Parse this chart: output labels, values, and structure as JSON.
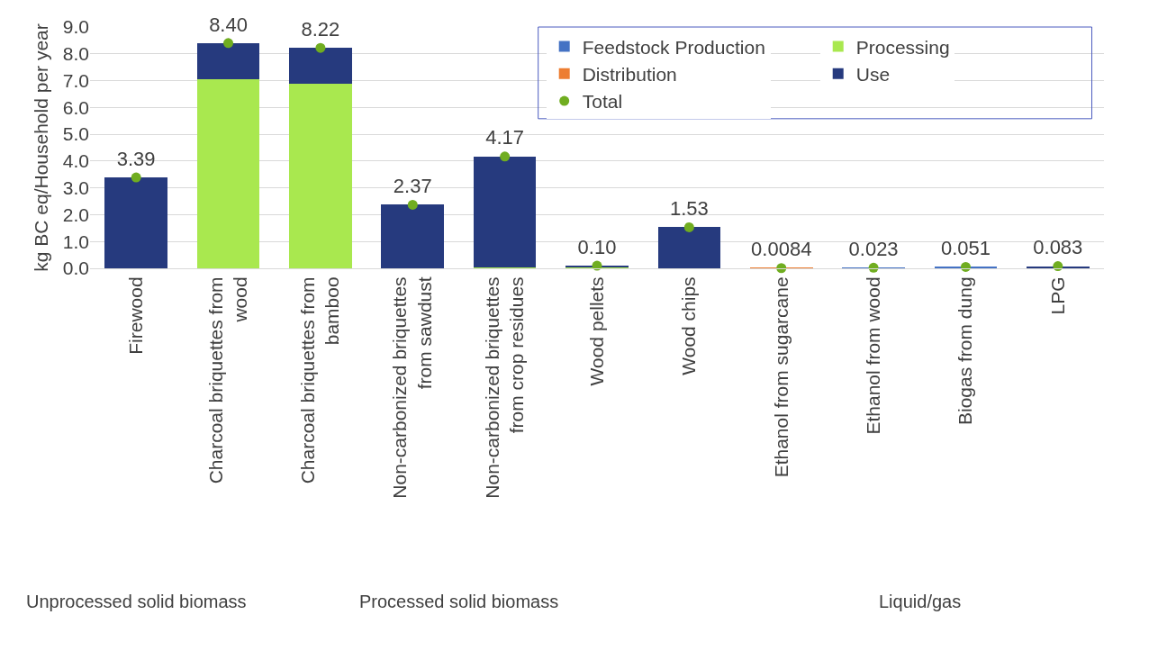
{
  "chart_data": {
    "type": "bar",
    "stacked": true,
    "ylabel": "kg BC eq/Household per year",
    "categories": [
      "Firewood",
      "Charcoal briquettes from wood",
      "Charcoal briquettes from bamboo",
      "Non-carbonized briquettes from sawdust",
      "Non-carbonized briquettes from crop residues",
      "Wood pellets",
      "Wood chips",
      "Ethanol from sugarcane",
      "Ethanol from wood",
      "Biogas from dung",
      "LPG"
    ],
    "series": [
      {
        "name": "Feedstock Production",
        "color": "#4472c4",
        "values": [
          0,
          0,
          0,
          0,
          0,
          0,
          0,
          0,
          0.02,
          0.05,
          null
        ]
      },
      {
        "name": "Processing",
        "color": "#a9e84f",
        "values": [
          0,
          7.05,
          6.88,
          0,
          0.03,
          0.02,
          0,
          0,
          0,
          0,
          0
        ]
      },
      {
        "name": "Distribution",
        "color": "#ed7d31",
        "values": [
          0,
          0,
          0,
          0,
          0,
          0,
          0,
          0.01,
          0,
          0,
          0.02
        ]
      },
      {
        "name": "Use",
        "color": "#263a7e",
        "values": [
          3.39,
          1.35,
          1.34,
          2.37,
          4.14,
          0.08,
          1.53,
          0,
          0,
          0,
          0.06
        ]
      },
      {
        "name": "Total",
        "type": "scatter",
        "marker": "circle",
        "color": "#70ad20",
        "values": [
          3.39,
          8.4,
          8.22,
          2.37,
          4.17,
          0.1,
          1.53,
          0.0084,
          0.023,
          0.051,
          0.083
        ],
        "value_labels": [
          "3.39",
          "8.40",
          "8.22",
          "2.37",
          "4.17",
          "0.10",
          "1.53",
          "0.0084",
          "0.023",
          "0.051",
          "0.083"
        ]
      }
    ],
    "ylim": [
      0,
      9
    ],
    "yticks": [
      {
        "value": 0,
        "label": "0.0"
      },
      {
        "value": 1,
        "label": "1.0"
      },
      {
        "value": 2,
        "label": "2.0"
      },
      {
        "value": 3,
        "label": "3.0"
      },
      {
        "value": 4,
        "label": "4.0"
      },
      {
        "value": 5,
        "label": "5.0"
      },
      {
        "value": 6,
        "label": "6.0"
      },
      {
        "value": 7,
        "label": "7.0"
      },
      {
        "value": 8,
        "label": "8.0"
      },
      {
        "value": 9,
        "label": "9.0"
      }
    ],
    "grid": "y",
    "legend": "top right",
    "annotations": [
      "Unprocessed solid biomass",
      "Processed solid biomass",
      "Liquid/gas"
    ]
  }
}
